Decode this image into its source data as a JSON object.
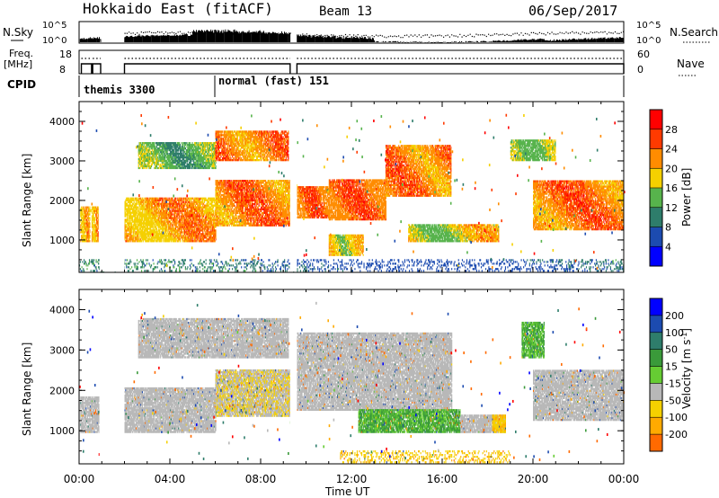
{
  "header": {
    "station": "Hokkaido East (fitACF)",
    "beam": "Beam 13",
    "date": "06/Sep/2017"
  },
  "status_panel": {
    "nsky_label": "N.Sky",
    "nsky_ticks": [
      "10^5",
      "10^0"
    ],
    "nsearch_label": "N.Search",
    "nsearch_ticks": [
      "10^5",
      "10^0"
    ],
    "freq_label_line1": "Freq.",
    "freq_label_line2": "[MHz]",
    "freq_ticks": [
      "18",
      "8"
    ],
    "nave_label": "Nave",
    "nave_ticks": [
      "60",
      "0"
    ],
    "cpid_label": "CPID",
    "cpid_modes": [
      {
        "name": "themis 3300",
        "start_hour": 0.3
      },
      {
        "name": "normal (fast) 151",
        "start_hour": 6.0
      }
    ]
  },
  "axes": {
    "time_ticks": [
      "00:00",
      "04:00",
      "08:00",
      "12:00",
      "16:00",
      "20:00",
      "00:00"
    ],
    "time_tick_hours": [
      0,
      4,
      8,
      12,
      16,
      20,
      24
    ],
    "xlabel": "Time UT",
    "ylabel": "Slant Range [km]",
    "range_ticks": [
      "1000",
      "2000",
      "3000",
      "4000"
    ],
    "range_tick_values": [
      1000,
      2000,
      3000,
      4000
    ],
    "range_limits": [
      180,
      4500
    ],
    "time_limits": [
      0,
      24
    ]
  },
  "power_colorbar": {
    "label": "Power [dB]",
    "tick_labels": [
      "4",
      "8",
      "12",
      "16",
      "20",
      "24",
      "28"
    ],
    "colors": [
      "#0000ff",
      "#1c4bb0",
      "#2e7d6b",
      "#57b34c",
      "#f5d000",
      "#ff8c00",
      "#ff3a00",
      "#ff0000"
    ]
  },
  "velocity_colorbar": {
    "label": "Velocity [m s",
    "label_sup": "-1",
    "label_end": "]",
    "tick_labels": [
      "200",
      "100",
      "50",
      "15",
      "-15",
      "-50",
      "-100",
      "-200"
    ],
    "colors": [
      "#0000ff",
      "#1c4bb0",
      "#2e7d6b",
      "#3a9a3a",
      "#66cc33",
      "#b8b8b8",
      "#f5d000",
      "#ffaa00",
      "#ff6a00",
      "#ff0000"
    ]
  },
  "chart_data": {
    "type": "heatmap",
    "series": [
      {
        "name": "Power [dB]",
        "regions": [
          {
            "t0": 0.05,
            "t1": 0.45,
            "r0": 950,
            "r1": 1850,
            "v0": 16,
            "v1": 26
          },
          {
            "t0": 0.55,
            "t1": 0.85,
            "r0": 950,
            "r1": 1850,
            "v0": 16,
            "v1": 26
          },
          {
            "t0": 2.0,
            "t1": 6.0,
            "r0": 950,
            "r1": 2050,
            "v0": 16,
            "v1": 28
          },
          {
            "t0": 6.0,
            "t1": 9.3,
            "r0": 1350,
            "r1": 2500,
            "v0": 18,
            "v1": 30
          },
          {
            "t0": 2.6,
            "t1": 6.0,
            "r0": 2800,
            "r1": 3450,
            "v0": 10,
            "v1": 20
          },
          {
            "t0": 6.0,
            "t1": 9.2,
            "r0": 3000,
            "r1": 3750,
            "v0": 18,
            "v1": 30
          },
          {
            "t0": 9.6,
            "t1": 11.0,
            "r0": 1550,
            "r1": 2350,
            "v0": 20,
            "v1": 30
          },
          {
            "t0": 11.0,
            "t1": 13.5,
            "r0": 1500,
            "r1": 2500,
            "v0": 20,
            "v1": 30
          },
          {
            "t0": 13.5,
            "t1": 16.4,
            "r0": 2100,
            "r1": 3400,
            "v0": 18,
            "v1": 30
          },
          {
            "t0": 11.0,
            "t1": 12.5,
            "r0": 600,
            "r1": 1100,
            "v0": 14,
            "v1": 24
          },
          {
            "t0": 14.5,
            "t1": 18.5,
            "r0": 950,
            "r1": 1400,
            "v0": 12,
            "v1": 26
          },
          {
            "t0": 20.0,
            "t1": 24.0,
            "r0": 1250,
            "r1": 2500,
            "v0": 18,
            "v1": 30
          },
          {
            "t0": 19.0,
            "t1": 21.0,
            "r0": 3000,
            "r1": 3500,
            "v0": 12,
            "v1": 20
          },
          {
            "t0": 0.0,
            "t1": 24.0,
            "r0": 200,
            "r1": 500,
            "v0": 4,
            "v1": 14
          }
        ]
      },
      {
        "name": "Velocity [m/s]",
        "regions": [
          {
            "t0": 0.05,
            "t1": 0.85,
            "r0": 950,
            "r1": 1850,
            "v0": -10,
            "v1": 10
          },
          {
            "t0": 2.0,
            "t1": 6.0,
            "r0": 950,
            "r1": 2050,
            "v0": -10,
            "v1": 10
          },
          {
            "t0": 6.0,
            "t1": 9.3,
            "r0": 1350,
            "r1": 2500,
            "v0": -30,
            "v1": 10
          },
          {
            "t0": 2.6,
            "t1": 9.2,
            "r0": 2800,
            "r1": 3750,
            "v0": -10,
            "v1": 10
          },
          {
            "t0": 9.6,
            "t1": 16.4,
            "r0": 1500,
            "r1": 3400,
            "v0": -10,
            "v1": 10
          },
          {
            "t0": 12.3,
            "t1": 16.8,
            "r0": 950,
            "r1": 1500,
            "v0": 20,
            "v1": 45
          },
          {
            "t0": 16.8,
            "t1": 18.8,
            "r0": 950,
            "r1": 1400,
            "v0": -10,
            "v1": 10
          },
          {
            "t0": 18.2,
            "t1": 18.8,
            "r0": 950,
            "r1": 1400,
            "v0": -60,
            "v1": -30
          },
          {
            "t0": 19.5,
            "t1": 20.5,
            "r0": 2800,
            "r1": 3700,
            "v0": 20,
            "v1": 40
          },
          {
            "t0": 20.0,
            "t1": 24.0,
            "r0": 1250,
            "r1": 2500,
            "v0": -10,
            "v1": 10
          },
          {
            "t0": 11.5,
            "t1": 19.0,
            "r0": 200,
            "r1": 500,
            "v0": -60,
            "v1": -25
          }
        ]
      }
    ],
    "x": {
      "label": "Time UT",
      "range": [
        0,
        24
      ],
      "unit": "hours UT"
    },
    "y": {
      "label": "Slant Range [km]",
      "range": [
        180,
        4500
      ]
    },
    "beam": 13,
    "date": "06/Sep/2017"
  }
}
